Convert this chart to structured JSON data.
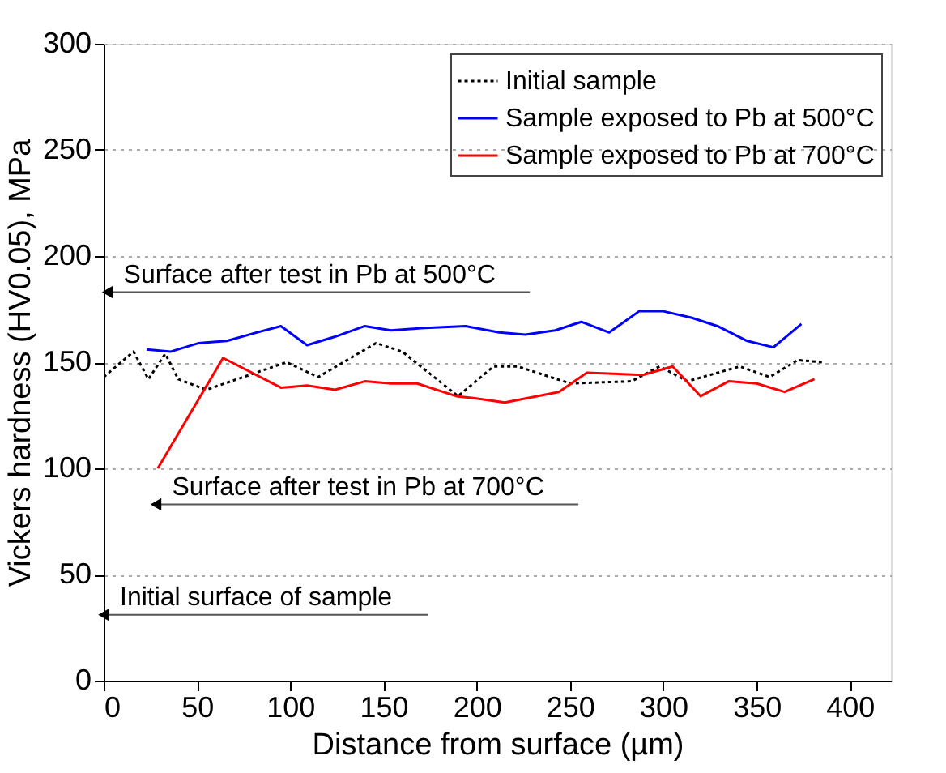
{
  "chart_data": {
    "type": "line",
    "xlabel": "Distance from surface (µm)",
    "ylabel": "Vickers hardness (HV0.05), MPa",
    "xlim": [
      0,
      422
    ],
    "xticks": [
      0,
      50,
      100,
      150,
      200,
      250,
      300,
      350,
      400
    ],
    "ylim": [
      0,
      300
    ],
    "yticks": [
      0,
      50,
      100,
      150,
      200,
      250,
      300
    ],
    "grid": "y",
    "legend": "top right",
    "marker": "none",
    "series": [
      {
        "name": "Initial sample",
        "color": "#000000",
        "line_style": "dotted",
        "x": [
          0,
          16,
          24,
          33,
          40,
          55,
          98,
          115,
          146,
          160,
          190,
          209,
          222,
          250,
          283,
          298,
          313,
          341,
          357,
          372,
          385
        ],
        "values": [
          143,
          155,
          142,
          154,
          142,
          137,
          150,
          143,
          159,
          155,
          134,
          148,
          148,
          140,
          141,
          148,
          141,
          148,
          143,
          151,
          150
        ]
      },
      {
        "name": "Sample exposed to Pb at 500°C",
        "color": "#0000ff",
        "line_style": "solid",
        "x": [
          23,
          36,
          51,
          66,
          82,
          95,
          109,
          124,
          140,
          154,
          170,
          194,
          212,
          226,
          242,
          256,
          271,
          287,
          300,
          315,
          329,
          345,
          359,
          374
        ],
        "values": [
          156,
          155,
          159,
          160,
          164,
          167,
          158,
          162,
          167,
          165,
          166,
          167,
          164,
          163,
          165,
          169,
          164,
          174,
          174,
          171,
          167,
          160,
          157,
          168
        ]
      },
      {
        "name": "Sample exposed to Pb at 700°C",
        "color": "#ff0000",
        "line_style": "solid",
        "x": [
          29,
          64,
          95,
          109,
          124,
          140,
          154,
          168,
          189,
          199,
          215,
          244,
          259,
          289,
          305,
          320,
          335,
          350,
          365,
          381
        ],
        "values": [
          100,
          152,
          138,
          139,
          137,
          141,
          140,
          140,
          134,
          133,
          131,
          136,
          145,
          144,
          148,
          134,
          141,
          140,
          136,
          142
        ]
      }
    ],
    "annotations": [
      {
        "text": "Surface after test in Pb at 500°C",
        "x": 2,
        "y": 183
      },
      {
        "text": "Surface after test in Pb at 700°C",
        "x": 28,
        "y": 83
      },
      {
        "text": "Initial surface of sample",
        "x": 0,
        "y": 31
      }
    ]
  }
}
